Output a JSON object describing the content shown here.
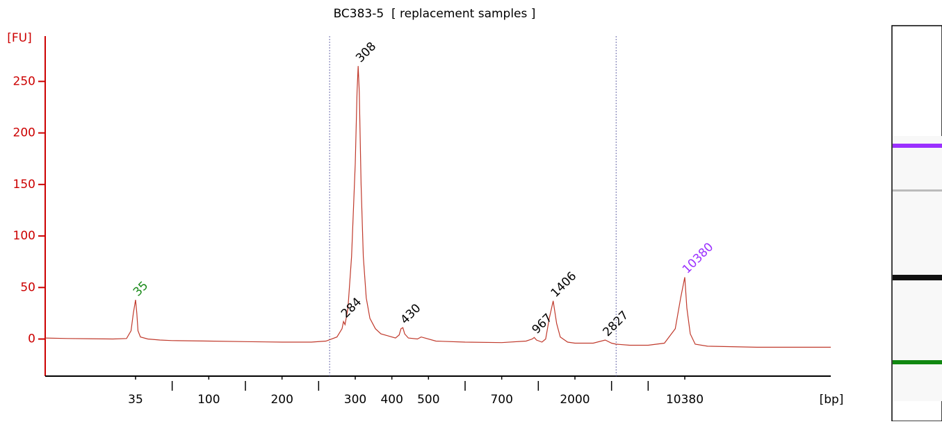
{
  "chart_data": {
    "type": "line",
    "title": "BC383-5  [ replacement samples ]",
    "y_label": "[FU]",
    "x_label": "[bp]",
    "x": [
      15,
      20,
      30,
      33,
      34,
      34.5,
      35,
      35.5,
      36,
      37,
      40,
      45,
      50,
      100,
      150,
      200,
      240,
      260,
      275,
      282,
      284,
      286,
      290,
      295,
      300,
      305,
      308,
      311,
      316,
      322,
      330,
      340,
      355,
      370,
      390,
      410,
      420,
      425,
      430,
      435,
      445,
      470,
      480,
      490,
      520,
      600,
      700,
      900,
      950,
      967,
      985,
      1100,
      1200,
      1300,
      1406,
      1500,
      1600,
      1800,
      2000,
      2500,
      2827,
      3000,
      3500,
      5000,
      7000,
      8500,
      9500,
      10000,
      10380,
      10800,
      11500,
      12500,
      15000,
      25000,
      40000
    ],
    "series": [
      {
        "color": "#c0392b",
        "values": [
          1,
          0.5,
          0,
          0.5,
          8,
          25,
          38,
          25,
          8,
          2,
          0,
          -1,
          -1.5,
          -2,
          -2.5,
          -3,
          -3,
          -2,
          2,
          10,
          17,
          14,
          30,
          80,
          170,
          240,
          265,
          240,
          150,
          80,
          40,
          20,
          10,
          5,
          3,
          1,
          4,
          10,
          11,
          5,
          1,
          0,
          2,
          1,
          -2,
          -3,
          -3.5,
          -2,
          0,
          1.5,
          -1,
          -3,
          0,
          20,
          37,
          15,
          2,
          -3,
          -4,
          -4,
          -1,
          -4,
          -5,
          -6,
          -6,
          -4,
          10,
          40,
          60,
          30,
          5,
          -5,
          -7,
          -8,
          -8
        ]
      }
    ],
    "peaks": [
      {
        "bp": 35,
        "fu": 38,
        "color": "#1a8a1a"
      },
      {
        "bp": 284,
        "fu": 17,
        "color": "#000000"
      },
      {
        "bp": 308,
        "fu": 265,
        "color": "#000000"
      },
      {
        "bp": 430,
        "fu": 11,
        "color": "#000000"
      },
      {
        "bp": 967,
        "fu": 1.5,
        "color": "#000000"
      },
      {
        "bp": 1406,
        "fu": 37,
        "color": "#000000"
      },
      {
        "bp": 2827,
        "fu": -1,
        "color": "#000000"
      },
      {
        "bp": 10380,
        "fu": 60,
        "color": "#9b30ff"
      }
    ],
    "region": [
      265,
      3500
    ],
    "xlim": [
      15,
      40000
    ],
    "xticks": [
      35,
      {
        "value": 50,
        "label": null
      },
      100,
      {
        "value": 150,
        "label": null
      },
      200,
      {
        "value": 250,
        "label": null
      },
      300,
      400,
      500,
      {
        "value": 600,
        "label": null
      },
      700,
      {
        "value": 1000,
        "label": null
      },
      2000,
      {
        "value": 3000,
        "label": null
      },
      {
        "value": 7000,
        "label": null
      },
      10380
    ],
    "ylim": [
      -36,
      294
    ],
    "yticks": [
      0,
      50,
      100,
      150,
      200,
      250
    ]
  }
}
